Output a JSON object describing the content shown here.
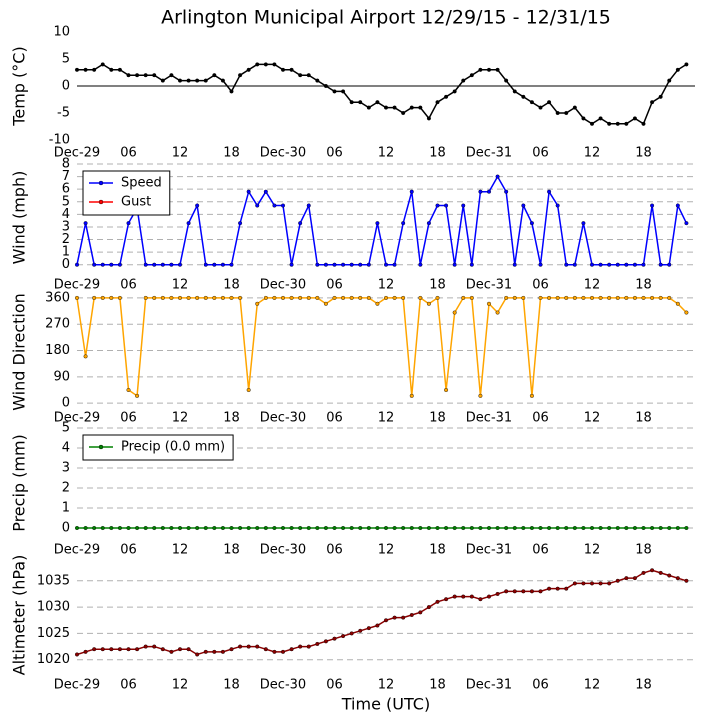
{
  "chart_data": [
    {
      "type": "line",
      "title": "Arlington Municipal Airport 12/29/15 - 12/31/15",
      "ylabel": "Temp (°C)",
      "x": [
        0,
        1,
        2,
        3,
        4,
        5,
        6,
        7,
        8,
        9,
        10,
        11,
        12,
        13,
        14,
        15,
        16,
        17,
        18,
        19,
        20,
        21,
        22,
        23,
        24,
        25,
        26,
        27,
        28,
        29,
        30,
        31,
        32,
        33,
        34,
        35,
        36,
        37,
        38,
        39,
        40,
        41,
        42,
        43,
        44,
        45,
        46,
        47,
        48,
        49,
        50,
        51,
        52,
        53,
        54,
        55,
        56,
        57,
        58,
        59,
        60,
        61,
        62,
        63,
        64,
        65,
        66,
        67,
        68,
        69,
        70,
        71
      ],
      "series": [
        {
          "name": "Temp",
          "color": "#000000",
          "values": [
            3,
            3,
            3,
            4,
            3,
            3,
            2,
            2,
            2,
            2,
            1,
            2,
            1,
            1,
            1,
            1,
            2,
            1,
            -1,
            2,
            3,
            4,
            4,
            4,
            3,
            3,
            2,
            2,
            1,
            0,
            -1,
            -1,
            -3,
            -3,
            -4,
            -3,
            -4,
            -4,
            -5,
            -4,
            -4,
            -6,
            -3,
            -2,
            -1,
            1,
            2,
            3,
            3,
            3,
            1,
            -1,
            -2,
            -3,
            -4,
            -3,
            -5,
            -5,
            -4,
            -6,
            -7,
            -6,
            -7,
            -7,
            -7,
            -6,
            -7,
            -3,
            -2,
            1,
            3,
            4
          ]
        }
      ],
      "xlim": [
        0,
        72
      ],
      "xticks": [
        {
          "value": 0,
          "label": "Dec-29"
        },
        {
          "value": 6,
          "label": "06"
        },
        12,
        18,
        {
          "value": 24,
          "label": "Dec-30"
        },
        {
          "value": 30,
          "label": "06"
        },
        {
          "value": 36,
          "label": "12"
        },
        {
          "value": 42,
          "label": "18"
        },
        {
          "value": 48,
          "label": "Dec-31"
        },
        {
          "value": 54,
          "label": "06"
        },
        {
          "value": 60,
          "label": "12"
        },
        {
          "value": 66,
          "label": "18"
        }
      ],
      "ylim": [
        -10,
        10
      ],
      "yticks": [
        -10,
        -5,
        0,
        5,
        10
      ],
      "grid": false,
      "hline": 0
    },
    {
      "type": "line",
      "ylabel": "Wind (mph)",
      "x": [
        0,
        1,
        2,
        3,
        4,
        5,
        6,
        7,
        8,
        9,
        10,
        11,
        12,
        13,
        14,
        15,
        16,
        17,
        18,
        19,
        20,
        21,
        22,
        23,
        24,
        25,
        26,
        27,
        28,
        29,
        30,
        31,
        32,
        33,
        34,
        35,
        36,
        37,
        38,
        39,
        40,
        41,
        42,
        43,
        44,
        45,
        46,
        47,
        48,
        49,
        50,
        51,
        52,
        53,
        54,
        55,
        56,
        57,
        58,
        59,
        60,
        61,
        62,
        63,
        64,
        65,
        66,
        67,
        68,
        69,
        70,
        71
      ],
      "series": [
        {
          "name": "Speed",
          "color": "#0000ff",
          "values": [
            0,
            3.3,
            0,
            0,
            0,
            0,
            3.3,
            4.5,
            0,
            0,
            0,
            0,
            0,
            3.3,
            4.7,
            0,
            0,
            0,
            0,
            3.3,
            5.8,
            4.7,
            5.8,
            4.7,
            4.7,
            0,
            3.3,
            4.7,
            0,
            0,
            0,
            0,
            0,
            0,
            0,
            3.3,
            0,
            0,
            3.3,
            5.8,
            0,
            3.3,
            4.7,
            4.7,
            0,
            4.7,
            0,
            5.8,
            5.8,
            7,
            5.8,
            0,
            4.7,
            3.3,
            0,
            5.8,
            4.7,
            0,
            0,
            3.3,
            0,
            0,
            0,
            0,
            0,
            0,
            0,
            4.7,
            0,
            0,
            4.7,
            3.3
          ]
        },
        {
          "name": "Gust",
          "color": "#ff0000",
          "values": [
            null,
            null,
            null,
            null,
            null,
            null,
            null,
            null,
            null,
            null,
            null,
            null,
            null,
            null,
            null,
            null,
            null,
            null,
            null,
            null,
            null,
            null,
            null,
            null,
            null,
            null,
            null,
            null,
            null,
            null,
            null,
            null,
            null,
            null,
            null,
            null,
            null,
            null,
            null,
            null,
            null,
            null,
            null,
            null,
            null,
            null,
            null,
            null,
            null,
            null,
            null,
            null,
            null,
            null,
            null,
            null,
            null,
            null,
            null,
            null,
            null,
            null,
            null,
            null,
            null,
            null,
            null,
            null,
            null,
            null,
            null,
            null
          ]
        }
      ],
      "xlim": [
        0,
        72
      ],
      "xticks": [
        {
          "value": 0,
          "label": "Dec-29"
        },
        {
          "value": 6,
          "label": "06"
        },
        12,
        18,
        {
          "value": 24,
          "label": "Dec-30"
        },
        {
          "value": 30,
          "label": "06"
        },
        {
          "value": 36,
          "label": "12"
        },
        {
          "value": 42,
          "label": "18"
        },
        {
          "value": 48,
          "label": "Dec-31"
        },
        {
          "value": 54,
          "label": "06"
        },
        {
          "value": 60,
          "label": "12"
        },
        {
          "value": 66,
          "label": "18"
        }
      ],
      "ylim": [
        -0.5,
        8
      ],
      "yticks": [
        0,
        1,
        2,
        3,
        4,
        5,
        6,
        7,
        8
      ],
      "grid": true,
      "legend": "upper left"
    },
    {
      "type": "line",
      "ylabel": "Wind Direction",
      "x": [
        0,
        1,
        2,
        3,
        4,
        5,
        6,
        7,
        8,
        9,
        10,
        11,
        12,
        13,
        14,
        15,
        16,
        17,
        18,
        19,
        20,
        21,
        22,
        23,
        24,
        25,
        26,
        27,
        28,
        29,
        30,
        31,
        32,
        33,
        34,
        35,
        36,
        37,
        38,
        39,
        40,
        41,
        42,
        43,
        44,
        45,
        46,
        47,
        48,
        49,
        50,
        51,
        52,
        53,
        54,
        55,
        56,
        57,
        58,
        59,
        60,
        61,
        62,
        63,
        64,
        65,
        66,
        67,
        68,
        69,
        70,
        71
      ],
      "series": [
        {
          "name": "Direction",
          "color": "#ffa500",
          "values": [
            360,
            160,
            360,
            360,
            360,
            360,
            45,
            25,
            360,
            360,
            360,
            360,
            360,
            360,
            360,
            360,
            360,
            360,
            360,
            360,
            45,
            340,
            360,
            360,
            360,
            360,
            360,
            360,
            360,
            340,
            360,
            360,
            360,
            360,
            360,
            340,
            360,
            360,
            360,
            25,
            360,
            340,
            360,
            45,
            310,
            360,
            360,
            25,
            340,
            310,
            360,
            360,
            360,
            25,
            360,
            360,
            360,
            360,
            360,
            360,
            360,
            360,
            360,
            360,
            360,
            360,
            360,
            360,
            360,
            360,
            340,
            310
          ]
        }
      ],
      "xlim": [
        0,
        72
      ],
      "xticks": [
        {
          "value": 0,
          "label": "Dec-29"
        },
        {
          "value": 6,
          "label": "06"
        },
        12,
        18,
        {
          "value": 24,
          "label": "Dec-30"
        },
        {
          "value": 30,
          "label": "06"
        },
        {
          "value": 36,
          "label": "12"
        },
        {
          "value": 42,
          "label": "18"
        },
        {
          "value": 48,
          "label": "Dec-31"
        },
        {
          "value": 54,
          "label": "06"
        },
        {
          "value": 60,
          "label": "12"
        },
        {
          "value": 66,
          "label": "18"
        }
      ],
      "ylim": [
        -20,
        370
      ],
      "yticks": [
        0,
        90,
        180,
        270,
        360
      ],
      "grid": true
    },
    {
      "type": "line",
      "ylabel": "Precip (mm)",
      "x": [
        0,
        1,
        2,
        3,
        4,
        5,
        6,
        7,
        8,
        9,
        10,
        11,
        12,
        13,
        14,
        15,
        16,
        17,
        18,
        19,
        20,
        21,
        22,
        23,
        24,
        25,
        26,
        27,
        28,
        29,
        30,
        31,
        32,
        33,
        34,
        35,
        36,
        37,
        38,
        39,
        40,
        41,
        42,
        43,
        44,
        45,
        46,
        47,
        48,
        49,
        50,
        51,
        52,
        53,
        54,
        55,
        56,
        57,
        58,
        59,
        60,
        61,
        62,
        63,
        64,
        65,
        66,
        67,
        68,
        69,
        70,
        71
      ],
      "series": [
        {
          "name": "Precip (0.0 mm)",
          "color": "#008000",
          "values": [
            0,
            0,
            0,
            0,
            0,
            0,
            0,
            0,
            0,
            0,
            0,
            0,
            0,
            0,
            0,
            0,
            0,
            0,
            0,
            0,
            0,
            0,
            0,
            0,
            0,
            0,
            0,
            0,
            0,
            0,
            0,
            0,
            0,
            0,
            0,
            0,
            0,
            0,
            0,
            0,
            0,
            0,
            0,
            0,
            0,
            0,
            0,
            0,
            0,
            0,
            0,
            0,
            0,
            0,
            0,
            0,
            0,
            0,
            0,
            0,
            0,
            0,
            0,
            0,
            0,
            0,
            0,
            0,
            0,
            0,
            0,
            0
          ]
        }
      ],
      "xlim": [
        0,
        72
      ],
      "xticks": [
        {
          "value": 0,
          "label": "Dec-29"
        },
        {
          "value": 6,
          "label": "06"
        },
        12,
        18,
        {
          "value": 24,
          "label": "Dec-30"
        },
        {
          "value": 30,
          "label": "06"
        },
        {
          "value": 36,
          "label": "12"
        },
        {
          "value": 42,
          "label": "18"
        },
        {
          "value": 48,
          "label": "Dec-31"
        },
        {
          "value": 54,
          "label": "06"
        },
        {
          "value": 60,
          "label": "12"
        },
        {
          "value": 66,
          "label": "18"
        }
      ],
      "ylim": [
        -0.5,
        5
      ],
      "yticks": [
        0,
        1,
        2,
        3,
        4,
        5
      ],
      "grid": true,
      "legend": "upper left"
    },
    {
      "type": "line",
      "ylabel": "Altimeter (hPa)",
      "xlabel": "Time (UTC)",
      "x": [
        0,
        1,
        2,
        3,
        4,
        5,
        6,
        7,
        8,
        9,
        10,
        11,
        12,
        13,
        14,
        15,
        16,
        17,
        18,
        19,
        20,
        21,
        22,
        23,
        24,
        25,
        26,
        27,
        28,
        29,
        30,
        31,
        32,
        33,
        34,
        35,
        36,
        37,
        38,
        39,
        40,
        41,
        42,
        43,
        44,
        45,
        46,
        47,
        48,
        49,
        50,
        51,
        52,
        53,
        54,
        55,
        56,
        57,
        58,
        59,
        60,
        61,
        62,
        63,
        64,
        65,
        66,
        67,
        68,
        69,
        70,
        71
      ],
      "series": [
        {
          "name": "Altimeter",
          "color": "#8b0000",
          "values": [
            1021,
            1021.5,
            1022,
            1022,
            1022,
            1022,
            1022,
            1022,
            1022.5,
            1022.5,
            1022,
            1021.5,
            1022,
            1022,
            1021,
            1021.5,
            1021.5,
            1021.5,
            1022,
            1022.5,
            1022.5,
            1022.5,
            1022,
            1021.5,
            1021.5,
            1022,
            1022.5,
            1022.5,
            1023,
            1023.5,
            1024,
            1024.5,
            1025,
            1025.5,
            1026,
            1026.5,
            1027.5,
            1028,
            1028,
            1028.5,
            1029,
            1030,
            1031,
            1031.5,
            1032,
            1032,
            1032,
            1031.5,
            1032,
            1032.5,
            1033,
            1033,
            1033,
            1033,
            1033,
            1033.5,
            1033.5,
            1033.5,
            1034.5,
            1034.5,
            1034.5,
            1034.5,
            1034.5,
            1035,
            1035.5,
            1035.5,
            1036.5,
            1037,
            1036.5,
            1036,
            1035.5,
            1035
          ]
        }
      ],
      "xlim": [
        0,
        72
      ],
      "xticks": [
        {
          "value": 0,
          "label": "Dec-29"
        },
        {
          "value": 6,
          "label": "06"
        },
        12,
        18,
        {
          "value": 24,
          "label": "Dec-30"
        },
        {
          "value": 30,
          "label": "06"
        },
        {
          "value": 36,
          "label": "12"
        },
        {
          "value": 42,
          "label": "18"
        },
        {
          "value": 48,
          "label": "Dec-31"
        },
        {
          "value": 54,
          "label": "06"
        },
        {
          "value": 60,
          "label": "12"
        },
        {
          "value": 66,
          "label": "18"
        }
      ],
      "ylim": [
        1019,
        1038
      ],
      "yticks": [
        1020,
        1025,
        1030,
        1035
      ],
      "grid": true
    }
  ]
}
